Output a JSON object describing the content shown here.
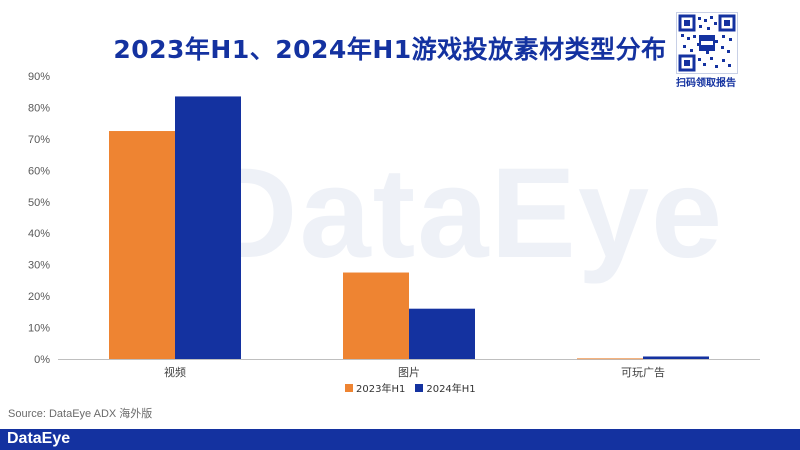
{
  "title": "2023年H1、2024年H1游戏投放素材类型分布",
  "watermark": "DataEye",
  "qr_label": "扫码领取报告",
  "source": "Source: DataEye ADX 海外版",
  "brand": "DataEye",
  "colors": {
    "series1": "#ee8432",
    "series2": "#1432a0",
    "accent": "#1432a0"
  },
  "chart_data": {
    "type": "bar",
    "title": "2023年H1、2024年H1游戏投放素材类型分布",
    "categories": [
      "视频",
      "图片",
      "可玩广告"
    ],
    "series": [
      {
        "name": "2023年H1",
        "values": [
          72.5,
          27.5,
          0.2
        ],
        "color": "#ee8432"
      },
      {
        "name": "2024年H1",
        "values": [
          83.5,
          16.0,
          0.8
        ],
        "color": "#1432a0"
      }
    ],
    "ylim": [
      0,
      90
    ],
    "yticks": [
      "0%",
      "10%",
      "20%",
      "30%",
      "40%",
      "50%",
      "60%",
      "70%",
      "80%",
      "90%"
    ],
    "xlabel": "",
    "ylabel": "",
    "grid": false,
    "legend": "bottom"
  }
}
